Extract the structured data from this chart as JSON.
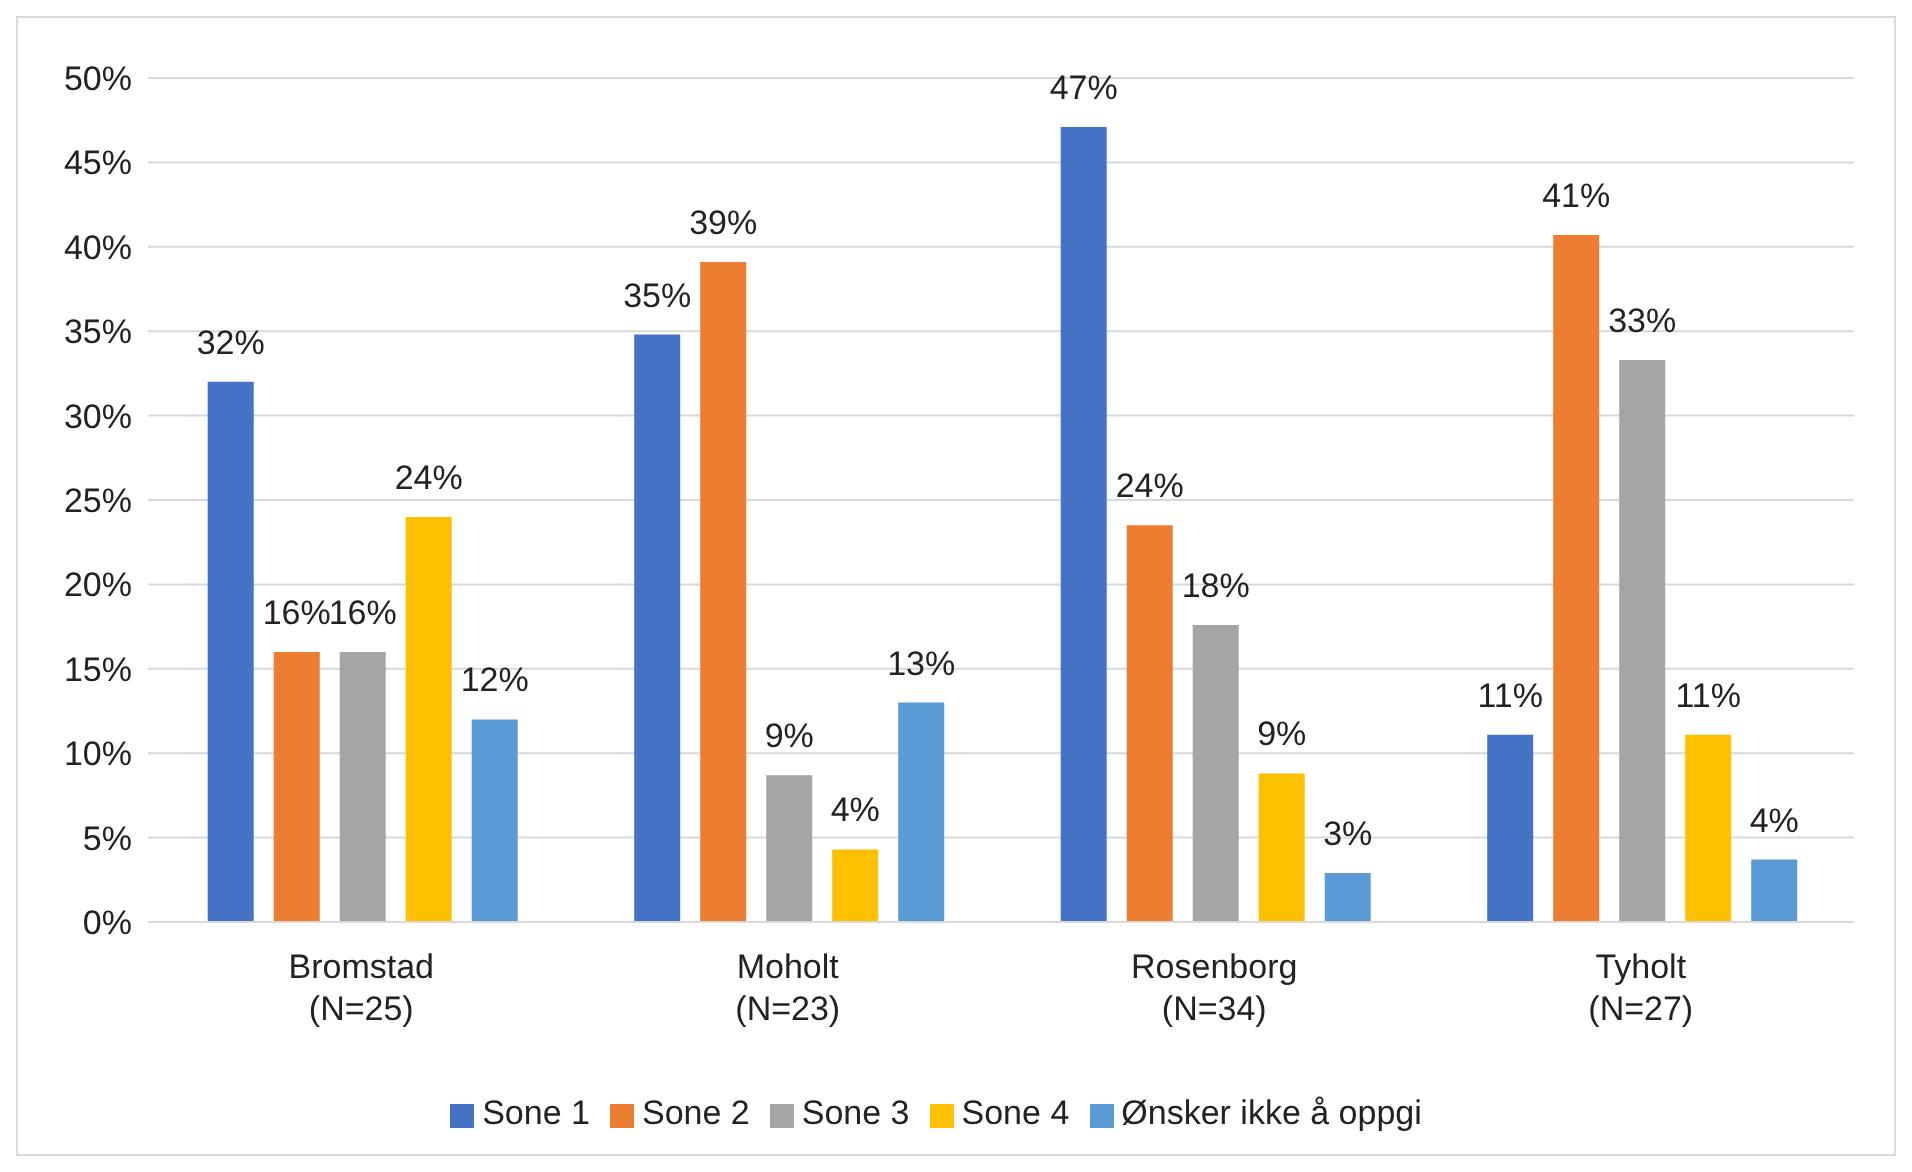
{
  "chart_data": {
    "type": "bar",
    "categories": [
      "Bromstad\n\n(N=25)",
      "Moholt\n\n(N=23)",
      "Rosenborg\n\n(N=34)",
      "Tyholt\n\n(N=27)"
    ],
    "series": [
      {
        "name": "Sone 1",
        "color": "#4472c4",
        "values": [
          32,
          34.8,
          47.1,
          11.1
        ],
        "value_labels": [
          "32%",
          "35%",
          "47%",
          "11%"
        ]
      },
      {
        "name": "Sone 2",
        "color": "#ed7d31",
        "values": [
          16,
          39.1,
          23.5,
          40.7
        ],
        "value_labels": [
          "16%",
          "39%",
          "24%",
          "41%"
        ]
      },
      {
        "name": "Sone 3",
        "color": "#a5a5a5",
        "values": [
          16,
          8.7,
          17.6,
          33.3
        ],
        "value_labels": [
          "16%",
          "9%",
          "18%",
          "33%"
        ]
      },
      {
        "name": "Sone 4",
        "color": "#ffc000",
        "values": [
          24,
          4.3,
          8.8,
          11.1
        ],
        "value_labels": [
          "24%",
          "4%",
          "9%",
          "11%"
        ]
      },
      {
        "name": "Ønsker ikke å oppgi",
        "color": "#5b9bd5",
        "values": [
          12,
          13,
          2.9,
          3.7
        ],
        "value_labels": [
          "12%",
          "13%",
          "3%",
          "4%"
        ]
      }
    ],
    "ylim": [
      0,
      50
    ],
    "yticks": [
      {
        "value": 0,
        "label": "0%"
      },
      {
        "value": 5,
        "label": "5%"
      },
      {
        "value": 10,
        "label": "10%"
      },
      {
        "value": 15,
        "label": "15%"
      },
      {
        "value": 20,
        "label": "20%"
      },
      {
        "value": 25,
        "label": "25%"
      },
      {
        "value": 30,
        "label": "30%"
      },
      {
        "value": 35,
        "label": "35%"
      },
      {
        "value": 40,
        "label": "40%"
      },
      {
        "value": 45,
        "label": "45%"
      },
      {
        "value": 50,
        "label": "50%"
      }
    ],
    "grid": "y",
    "legend": "bottom"
  }
}
